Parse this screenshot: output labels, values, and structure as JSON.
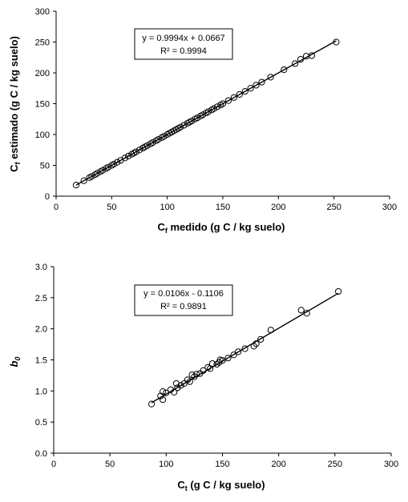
{
  "chart_data": [
    {
      "type": "scatter",
      "xlabel": {
        "main": "C",
        "sub": "f",
        "rest": " medido (g C / kg suelo)"
      },
      "ylabel": {
        "main": "C",
        "sub": "f",
        "rest": " estimado (g C / kg suelo)"
      },
      "xlim": [
        0,
        300
      ],
      "ylim": [
        0,
        300
      ],
      "xticks": [
        "0",
        "50",
        "100",
        "150",
        "200",
        "250",
        "300"
      ],
      "yticks": [
        "0",
        "50",
        "100",
        "150",
        "200",
        "250",
        "300"
      ],
      "grid": false,
      "legend": "none",
      "annotation": {
        "equation": "y = 0.9994x + 0.0667",
        "r2": "R² = 0.9994"
      },
      "trendline": {
        "slope": 0.9994,
        "intercept": 0.0667,
        "x_range": [
          18,
          252
        ]
      },
      "points": [
        [
          18,
          18
        ],
        [
          25,
          25
        ],
        [
          30,
          30
        ],
        [
          32,
          32
        ],
        [
          35,
          35
        ],
        [
          37,
          37
        ],
        [
          40,
          40
        ],
        [
          42,
          42
        ],
        [
          45,
          45
        ],
        [
          47,
          47
        ],
        [
          50,
          50
        ],
        [
          52,
          52
        ],
        [
          55,
          55
        ],
        [
          58,
          58
        ],
        [
          62,
          62
        ],
        [
          65,
          65
        ],
        [
          68,
          68
        ],
        [
          70,
          70
        ],
        [
          72,
          72
        ],
        [
          75,
          75
        ],
        [
          78,
          78
        ],
        [
          80,
          80
        ],
        [
          82,
          82
        ],
        [
          85,
          85
        ],
        [
          87,
          87
        ],
        [
          90,
          90
        ],
        [
          92,
          92
        ],
        [
          95,
          95
        ],
        [
          97,
          97
        ],
        [
          100,
          100
        ],
        [
          102,
          102
        ],
        [
          104,
          104
        ],
        [
          106,
          106
        ],
        [
          108,
          108
        ],
        [
          110,
          110
        ],
        [
          112,
          112
        ],
        [
          115,
          115
        ],
        [
          118,
          118
        ],
        [
          120,
          120
        ],
        [
          122,
          122
        ],
        [
          125,
          125
        ],
        [
          127,
          127
        ],
        [
          130,
          130
        ],
        [
          132,
          132
        ],
        [
          135,
          135
        ],
        [
          137,
          137
        ],
        [
          140,
          140
        ],
        [
          142,
          142
        ],
        [
          145,
          145
        ],
        [
          148,
          148
        ],
        [
          150,
          150
        ],
        [
          155,
          155
        ],
        [
          160,
          160
        ],
        [
          165,
          165
        ],
        [
          170,
          170
        ],
        [
          175,
          175
        ],
        [
          180,
          180
        ],
        [
          185,
          185
        ],
        [
          193,
          193
        ],
        [
          205,
          205
        ],
        [
          215,
          215
        ],
        [
          220,
          222
        ],
        [
          225,
          227
        ],
        [
          230,
          228
        ],
        [
          252,
          250
        ]
      ]
    },
    {
      "type": "scatter",
      "xlabel": {
        "main": "C",
        "sub": "t",
        "rest": " (g C / kg suelo)"
      },
      "ylabel": {
        "main": "b",
        "sub": "0",
        "rest": ""
      },
      "xlim": [
        0,
        300
      ],
      "ylim": [
        0,
        3.0
      ],
      "xticks": [
        "0",
        "50",
        "100",
        "150",
        "200",
        "250",
        "300"
      ],
      "yticks": [
        "0.0",
        "0.5",
        "1.0",
        "1.5",
        "2.0",
        "2.5",
        "3.0"
      ],
      "grid": false,
      "legend": "none",
      "annotation": {
        "equation": "y = 0.0106x - 0.1106",
        "r2": "R² = 0.9891"
      },
      "trendline": {
        "slope": 0.0106,
        "intercept": -0.1106,
        "x_range": [
          87,
          253
        ]
      },
      "points": [
        [
          87,
          0.79
        ],
        [
          95,
          0.92
        ],
        [
          97,
          0.99
        ],
        [
          97,
          0.86
        ],
        [
          100,
          0.97
        ],
        [
          104,
          1.02
        ],
        [
          107,
          0.98
        ],
        [
          109,
          1.12
        ],
        [
          110,
          1.05
        ],
        [
          113,
          1.09
        ],
        [
          116,
          1.12
        ],
        [
          119,
          1.18
        ],
        [
          121,
          1.15
        ],
        [
          123,
          1.26
        ],
        [
          125,
          1.23
        ],
        [
          127,
          1.27
        ],
        [
          130,
          1.28
        ],
        [
          133,
          1.33
        ],
        [
          137,
          1.38
        ],
        [
          139,
          1.36
        ],
        [
          141,
          1.44
        ],
        [
          145,
          1.43
        ],
        [
          147,
          1.46
        ],
        [
          148,
          1.5
        ],
        [
          150,
          1.49
        ],
        [
          155,
          1.53
        ],
        [
          160,
          1.58
        ],
        [
          164,
          1.63
        ],
        [
          170,
          1.68
        ],
        [
          178,
          1.72
        ],
        [
          180,
          1.76
        ],
        [
          184,
          1.83
        ],
        [
          193,
          1.98
        ],
        [
          220,
          2.3
        ],
        [
          225,
          2.25
        ],
        [
          253,
          2.6
        ]
      ]
    }
  ]
}
